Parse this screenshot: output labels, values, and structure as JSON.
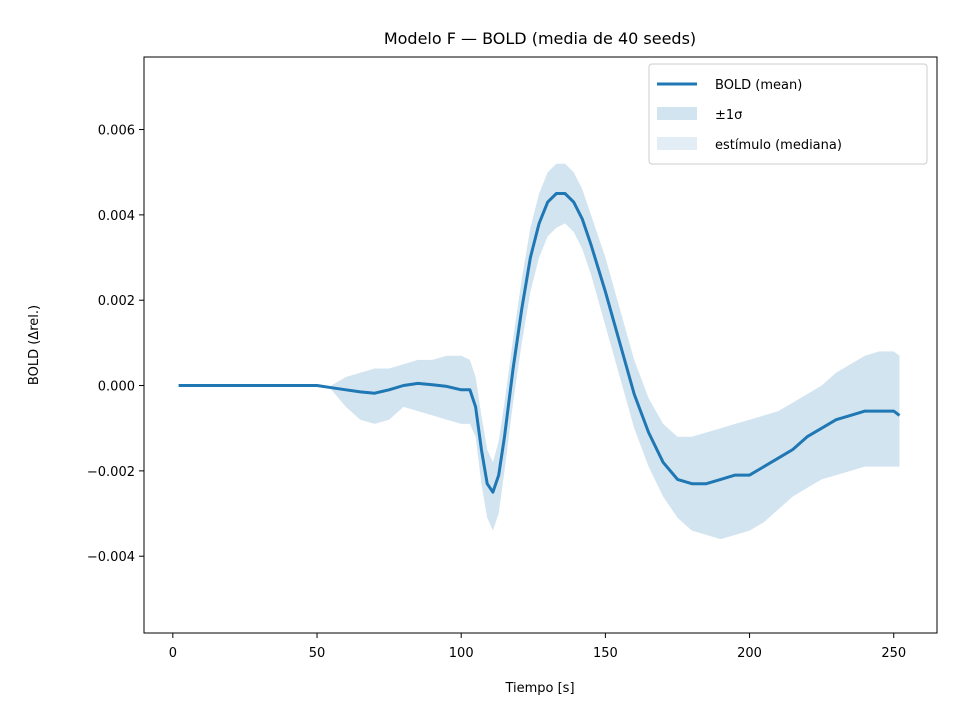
{
  "chart_data": {
    "type": "line",
    "title": "Modelo F — BOLD (media de 40 seeds)",
    "xlabel": "Tiempo [s]",
    "ylabel": "BOLD (Δrel.)",
    "xlim": [
      -10,
      265
    ],
    "ylim": [
      -0.0058,
      0.0077
    ],
    "xticks": [
      0,
      50,
      100,
      150,
      200,
      250
    ],
    "xtick_labels": [
      "0",
      "50",
      "100",
      "150",
      "200",
      "250"
    ],
    "yticks": [
      -0.004,
      -0.002,
      0.0,
      0.002,
      0.004,
      0.006
    ],
    "ytick_labels": [
      "−0.004",
      "−0.002",
      "0.000",
      "0.002",
      "0.004",
      "0.006"
    ],
    "grid": false,
    "legend_position": "top-right",
    "colors": {
      "mean": "#1f77b4",
      "band": "#1f77b4",
      "stimulus": "#c6dcec"
    },
    "series": [
      {
        "name": "BOLD (mean)",
        "x": [
          2,
          10,
          20,
          30,
          40,
          50,
          55,
          60,
          65,
          70,
          75,
          80,
          85,
          90,
          95,
          100,
          103,
          105,
          107,
          109,
          111,
          113,
          115,
          118,
          121,
          124,
          127,
          130,
          133,
          136,
          139,
          142,
          145,
          150,
          155,
          160,
          165,
          170,
          175,
          180,
          185,
          190,
          195,
          200,
          205,
          210,
          215,
          220,
          225,
          230,
          235,
          240,
          245,
          250,
          252
        ],
        "y": [
          0,
          0,
          0,
          0,
          0,
          0,
          -5e-05,
          -0.0001,
          -0.00015,
          -0.00018,
          -0.0001,
          0,
          5e-05,
          2e-05,
          -2e-05,
          -0.0001,
          -0.0001,
          -0.0005,
          -0.0015,
          -0.0023,
          -0.0025,
          -0.0021,
          -0.0012,
          0.0004,
          0.0018,
          0.003,
          0.0038,
          0.0043,
          0.0045,
          0.0045,
          0.0043,
          0.0039,
          0.0033,
          0.0022,
          0.001,
          -0.0002,
          -0.0011,
          -0.0018,
          -0.0022,
          -0.0023,
          -0.0023,
          -0.0022,
          -0.0021,
          -0.0021,
          -0.0019,
          -0.0017,
          -0.0015,
          -0.0012,
          -0.001,
          -0.0008,
          -0.0007,
          -0.0006,
          -0.0006,
          -0.0006,
          -0.0007
        ]
      },
      {
        "name": "±1σ",
        "x": [
          55,
          60,
          65,
          70,
          75,
          80,
          85,
          90,
          95,
          100,
          103,
          105,
          107,
          109,
          111,
          113,
          115,
          118,
          121,
          124,
          127,
          130,
          133,
          136,
          139,
          142,
          145,
          150,
          155,
          160,
          165,
          170,
          175,
          180,
          185,
          190,
          195,
          200,
          205,
          210,
          215,
          220,
          225,
          230,
          235,
          240,
          245,
          250,
          252
        ],
        "lower": [
          -0.0001,
          -0.0005,
          -0.0008,
          -0.0009,
          -0.0008,
          -0.0005,
          -0.0006,
          -0.0007,
          -0.0008,
          -0.0009,
          -0.0009,
          -0.0012,
          -0.0023,
          -0.0031,
          -0.0034,
          -0.003,
          -0.002,
          -0.0004,
          0.001,
          0.0022,
          0.003,
          0.0035,
          0.0037,
          0.0038,
          0.0036,
          0.0032,
          0.0026,
          0.0014,
          0.0002,
          -0.001,
          -0.0019,
          -0.0026,
          -0.0031,
          -0.0034,
          -0.0035,
          -0.0036,
          -0.0035,
          -0.0034,
          -0.0032,
          -0.0029,
          -0.0026,
          -0.0024,
          -0.0022,
          -0.0021,
          -0.002,
          -0.0019,
          -0.0019,
          -0.0019,
          -0.0019
        ],
        "upper": [
          0.0,
          0.0002,
          0.0003,
          0.0004,
          0.0004,
          0.0005,
          0.0006,
          0.0006,
          0.0007,
          0.0007,
          0.0006,
          0.0002,
          -0.0007,
          -0.0015,
          -0.0018,
          -0.0013,
          -0.0004,
          0.0011,
          0.0025,
          0.0037,
          0.0045,
          0.005,
          0.0052,
          0.0052,
          0.005,
          0.0046,
          0.004,
          0.003,
          0.0018,
          0.0006,
          -0.0003,
          -0.0009,
          -0.0012,
          -0.0012,
          -0.0011,
          -0.001,
          -0.0009,
          -0.0008,
          -0.0007,
          -0.0006,
          -0.0004,
          -0.0002,
          0.0,
          0.0003,
          0.0005,
          0.0007,
          0.0008,
          0.0008,
          0.0007
        ]
      },
      {
        "name": "estímulo (mediana)",
        "x": [],
        "y": []
      }
    ]
  }
}
